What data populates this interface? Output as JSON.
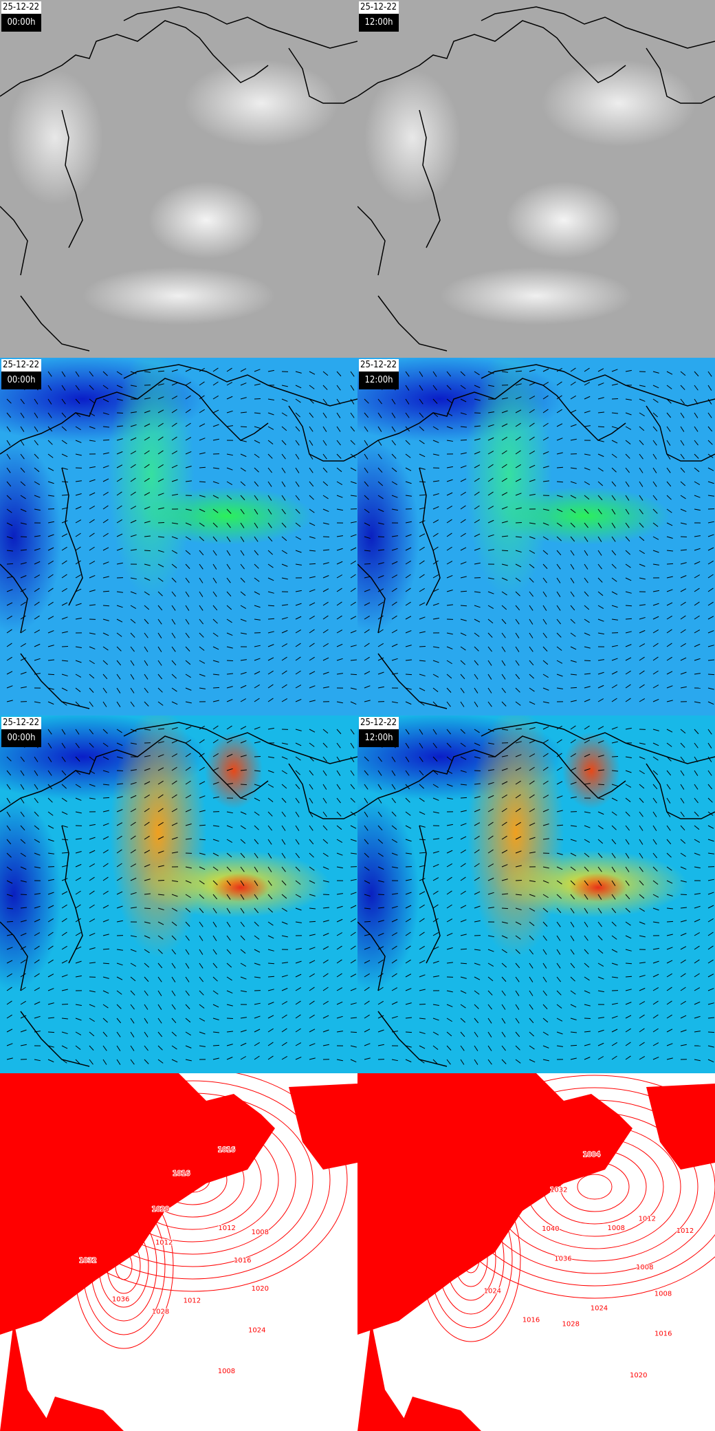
{
  "panels": [
    {
      "layer": "infrared-satellite",
      "date": "25-12-22",
      "time": "00:00h"
    },
    {
      "layer": "infrared-satellite",
      "date": "25-12-22",
      "time": "12:00h"
    },
    {
      "layer": "wind-low-level",
      "date": "25-12-22",
      "time": "00:00h"
    },
    {
      "layer": "wind-low-level",
      "date": "25-12-22",
      "time": "12:00h"
    },
    {
      "layer": "wind-upper-level",
      "date": "25-12-22",
      "time": "00:00h"
    },
    {
      "layer": "wind-upper-level",
      "date": "25-12-22",
      "time": "12:00h"
    },
    {
      "layer": "surface-pressure",
      "date": "",
      "time": "",
      "isobar_labels": [
        "1016",
        "1020",
        "1024",
        "1008",
        "1012",
        "1028",
        "1036",
        "1032",
        "1012",
        "1020",
        "1016",
        "1016",
        "1012",
        "1008"
      ]
    },
    {
      "layer": "surface-pressure",
      "date": "",
      "time": "",
      "isobar_labels": [
        "1008",
        "1008",
        "1016",
        "1020",
        "1024",
        "1028",
        "1016",
        "1024",
        "1036",
        "1040",
        "1032",
        "1004",
        "1008",
        "1012",
        "1012"
      ]
    }
  ],
  "colors": {
    "isobar": "#ff0000",
    "coastline": "#000000",
    "ir_background": "#a9a9a9",
    "wind_low": "#0a1ec8",
    "wind_high": "#e83018"
  }
}
